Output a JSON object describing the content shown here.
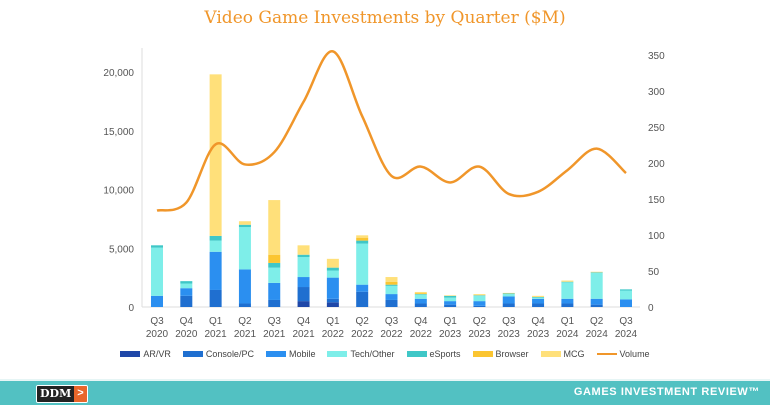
{
  "chart_data": {
    "type": "bar",
    "stacked": true,
    "title": "Video Game Investments by Quarter ($M)",
    "categories": [
      [
        "Q3",
        "2020"
      ],
      [
        "Q4",
        "2020"
      ],
      [
        "Q1",
        "2021"
      ],
      [
        "Q2",
        "2021"
      ],
      [
        "Q3",
        "2021"
      ],
      [
        "Q4",
        "2021"
      ],
      [
        "Q1",
        "2022"
      ],
      [
        "Q2",
        "2022"
      ],
      [
        "Q3",
        "2022"
      ],
      [
        "Q4",
        "2022"
      ],
      [
        "Q1",
        "2023"
      ],
      [
        "Q2",
        "2023"
      ],
      [
        "Q3",
        "2023"
      ],
      [
        "Q4",
        "2023"
      ],
      [
        "Q1",
        "2024"
      ],
      [
        "Q2",
        "2024"
      ],
      [
        "Q3",
        "2024"
      ]
    ],
    "ylim_left": [
      0,
      20000
    ],
    "yticks_left": [
      "0",
      "5,000",
      "10,000",
      "15,000",
      "20,000"
    ],
    "ylim_right": [
      0,
      350
    ],
    "yticks_right": [
      "0",
      "50",
      "100",
      "150",
      "200",
      "250",
      "300",
      "350"
    ],
    "series": [
      {
        "name": "AR/VR",
        "color": "#1f47a8",
        "values": [
          0,
          0,
          0,
          0,
          0,
          500,
          400,
          0,
          0,
          0,
          0,
          0,
          0,
          0,
          0,
          0,
          0
        ]
      },
      {
        "name": "Console/PC",
        "color": "#1f6fd0",
        "values": [
          0,
          950,
          1450,
          300,
          600,
          1200,
          300,
          1300,
          600,
          300,
          200,
          100,
          300,
          300,
          300,
          200,
          0
        ]
      },
      {
        "name": "Mobile",
        "color": "#2b8ff0",
        "values": [
          950,
          650,
          3250,
          2900,
          1450,
          850,
          1800,
          600,
          500,
          400,
          300,
          400,
          600,
          400,
          400,
          500,
          650
        ]
      },
      {
        "name": "Tech/Other",
        "color": "#7eeee9",
        "values": [
          4100,
          400,
          950,
          3600,
          1300,
          1700,
          600,
          3500,
          700,
          350,
          300,
          450,
          200,
          100,
          1400,
          2200,
          750
        ]
      },
      {
        "name": "eSports",
        "color": "#3fc7c7",
        "values": [
          200,
          200,
          400,
          200,
          400,
          200,
          250,
          250,
          100,
          50,
          150,
          50,
          50,
          50,
          50,
          50,
          100
        ]
      },
      {
        "name": "Browser",
        "color": "#fbc531",
        "values": [
          0,
          0,
          0,
          0,
          700,
          0,
          0,
          250,
          250,
          80,
          0,
          0,
          0,
          0,
          0,
          0,
          0
        ]
      },
      {
        "name": "MCG",
        "color": "#ffe07a",
        "values": [
          0,
          0,
          13750,
          300,
          4650,
          800,
          750,
          200,
          400,
          100,
          50,
          100,
          50,
          100,
          100,
          50,
          0
        ]
      }
    ],
    "line": {
      "name": "Volume",
      "color": "#f0962a",
      "axis": "right",
      "values": [
        134,
        145,
        226,
        198,
        215,
        285,
        355,
        265,
        182,
        195,
        173,
        195,
        157,
        160,
        190,
        220,
        186
      ]
    },
    "legend": "bottom",
    "grid": false
  },
  "footer": {
    "logo": "DDM",
    "brand": "GAMES INVESTMENT REVIEW™"
  }
}
